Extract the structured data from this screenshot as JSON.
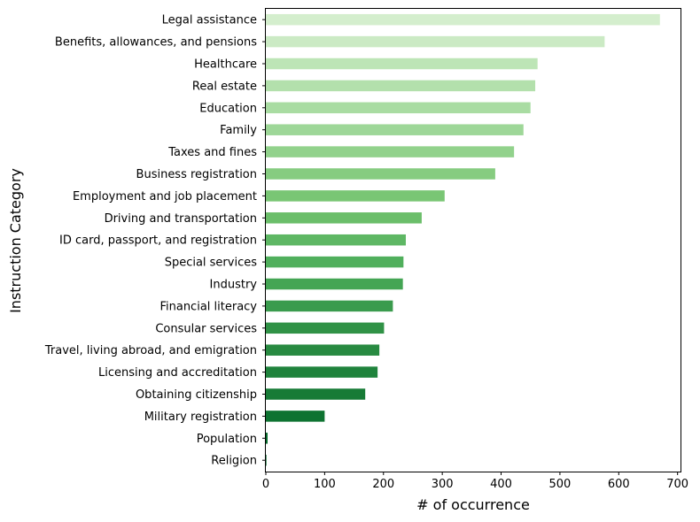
{
  "chart_data": {
    "type": "bar",
    "orientation": "horizontal",
    "title": "",
    "xlabel": "# of occurrence",
    "ylabel": "Instruction Category",
    "xlim": [
      0,
      705
    ],
    "xticks": [
      0,
      100,
      200,
      300,
      400,
      500,
      600,
      700
    ],
    "grid": false,
    "categories": [
      "Legal assistance",
      "Benefits, allowances, and pensions",
      "Healthcare",
      "Real estate",
      "Education",
      "Family",
      "Taxes and fines",
      "Business registration",
      "Employment and job placement",
      "Driving and transportation",
      "ID card, passport, and registration",
      "Special services",
      "Industry",
      "Financial literacy",
      "Consular services",
      "Travel, living abroad, and emigration",
      "Licensing and accreditation",
      "Obtaining citizenship",
      "Military registration",
      "Population",
      "Religion"
    ],
    "values": [
      670,
      576,
      462,
      458,
      450,
      438,
      422,
      390,
      304,
      265,
      238,
      234,
      233,
      216,
      201,
      193,
      190,
      169,
      100,
      3,
      1
    ],
    "colors": [
      "#d4eecd",
      "#cbeac4",
      "#bde5b6",
      "#b3e0ac",
      "#a9dca2",
      "#9ed798",
      "#92d28c",
      "#86cc80",
      "#79c674",
      "#6bbe6a",
      "#5eb764",
      "#50af5c",
      "#44a554",
      "#3a9b4d",
      "#309246",
      "#288a41",
      "#1f833c",
      "#177b36",
      "#0e7331",
      "#066b2c",
      "#006428"
    ]
  }
}
